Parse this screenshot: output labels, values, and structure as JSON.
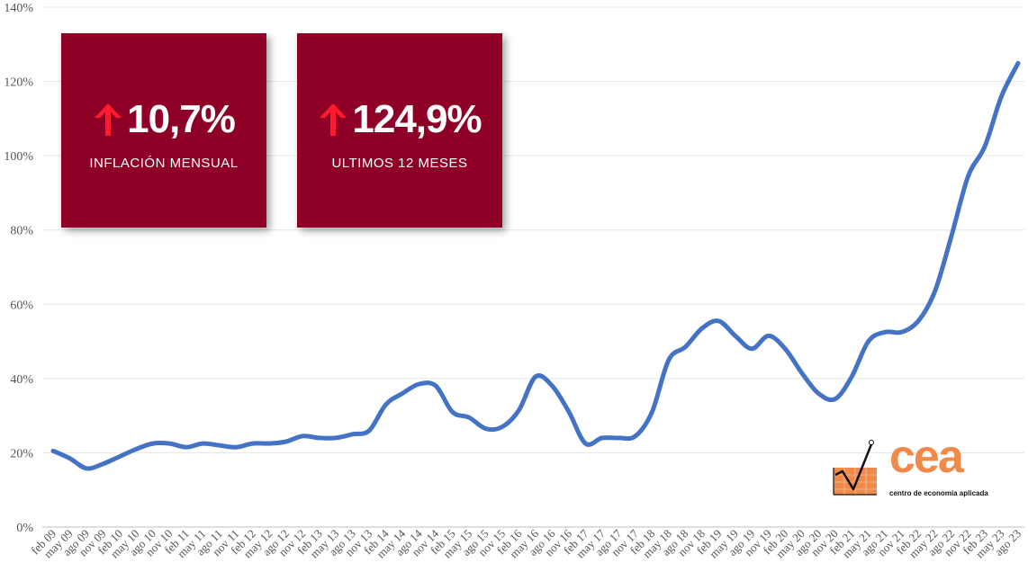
{
  "cards": [
    {
      "value": "10,7%",
      "label": "INFLACIÓN MENSUAL"
    },
    {
      "value": "124,9%",
      "label": "ULTIMOS 12 MESES"
    }
  ],
  "logo": {
    "word": "cea",
    "subtitle": "centro de economía aplicada",
    "icon": "chart-check-logo-icon"
  },
  "colors": {
    "line": "#4472c4",
    "card": "#8e0025",
    "arrow": "#ff1a2e",
    "logo": "#f08a4b"
  },
  "chart_data": {
    "type": "line",
    "title": "",
    "xlabel": "",
    "ylabel": "",
    "ylim": [
      0,
      140
    ],
    "yticks": [
      0,
      20,
      40,
      60,
      80,
      100,
      120,
      140
    ],
    "ytick_labels": [
      "0%",
      "20%",
      "40%",
      "60%",
      "80%",
      "100%",
      "120%",
      "140%"
    ],
    "grid": true,
    "legend": "none",
    "x": [
      "feb 09",
      "may 09",
      "ago 09",
      "nov 09",
      "feb 10",
      "may 10",
      "ago 10",
      "nov 10",
      "feb 11",
      "may 11",
      "ago 11",
      "nov 11",
      "feb 12",
      "may 12",
      "ago 12",
      "nov 12",
      "feb 13",
      "may 13",
      "ago 13",
      "nov 13",
      "feb 14",
      "may 14",
      "ago 14",
      "nov 14",
      "feb 15",
      "may 15",
      "ago 15",
      "nov 15",
      "feb 16",
      "may 16",
      "ago 16",
      "nov 16",
      "feb 17",
      "may 17",
      "ago 17",
      "nov 17",
      "feb 18",
      "may 18",
      "ago 18",
      "nov 18",
      "feb 19",
      "may 19",
      "ago 19",
      "nov 19",
      "feb 20",
      "may 20",
      "ago 20",
      "nov 20",
      "feb 21",
      "may 21",
      "ago 21",
      "nov 21",
      "feb 22",
      "may 22",
      "ago 22",
      "nov 22",
      "feb 23",
      "may 23",
      "ago 23"
    ],
    "series": [
      {
        "values": [
          20.5,
          18.5,
          15.8,
          17.0,
          19.0,
          21.0,
          22.5,
          22.5,
          21.5,
          22.5,
          22.0,
          21.5,
          22.5,
          22.5,
          23.0,
          24.5,
          24.0,
          24.0,
          25.0,
          26.0,
          33.0,
          36.0,
          38.5,
          38.0,
          31.0,
          29.5,
          26.5,
          27.0,
          31.5,
          40.5,
          38.0,
          31.0,
          22.5,
          24.0,
          24.0,
          24.5,
          31.0,
          45.0,
          48.5,
          53.5,
          55.5,
          51.5,
          48.0,
          51.5,
          48.0,
          41.5,
          36.0,
          34.5,
          40.5,
          50.0,
          52.5,
          52.5,
          55.5,
          63.5,
          78.5,
          94.5,
          102.5,
          116.0,
          124.9
        ]
      }
    ]
  }
}
